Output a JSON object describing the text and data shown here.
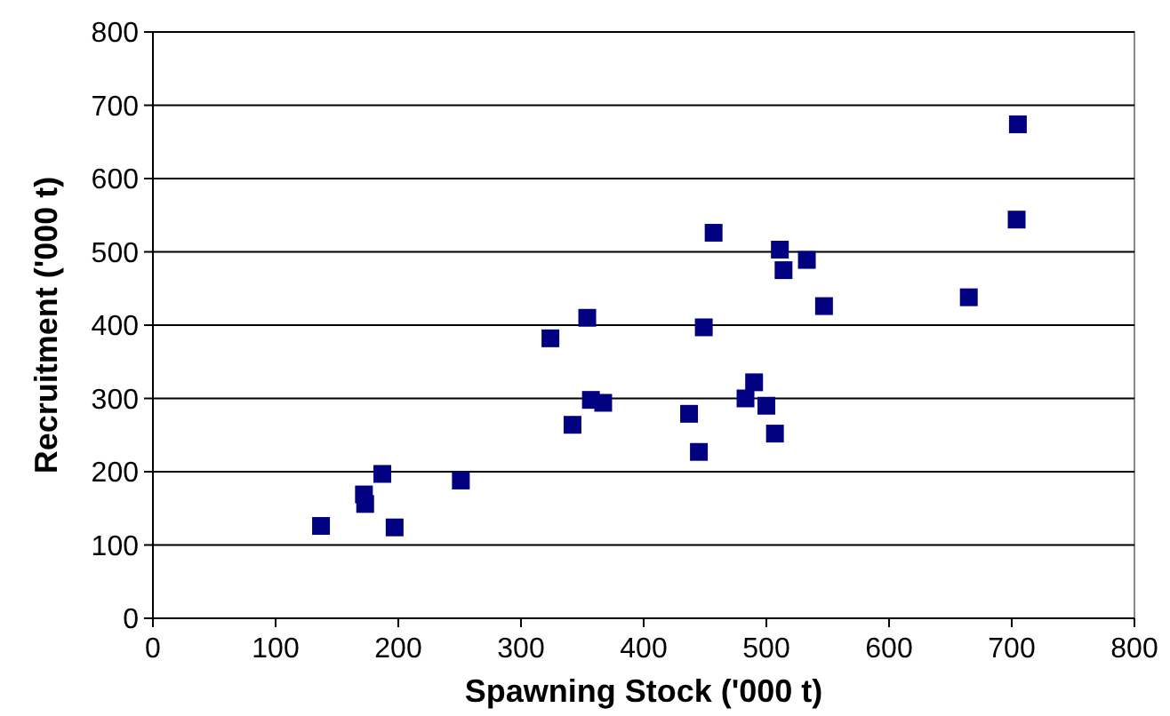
{
  "chart_data": {
    "type": "scatter",
    "xlabel": "Spawning Stock ('000 t)",
    "ylabel": "Recruitment ('000 t)",
    "xlim": [
      0,
      800
    ],
    "ylim": [
      0,
      800
    ],
    "xticks": [
      0,
      100,
      200,
      300,
      400,
      500,
      600,
      700,
      800
    ],
    "yticks": [
      0,
      100,
      200,
      300,
      400,
      500,
      600,
      700,
      800
    ],
    "grid": "y",
    "marker": "square",
    "series": [
      {
        "color": "#000080",
        "x": [
          137,
          172,
          173,
          187,
          197,
          251,
          324,
          342,
          354,
          357,
          367,
          437,
          445,
          449,
          457,
          483,
          490,
          500,
          507,
          511,
          514,
          533,
          547,
          665,
          704,
          705
        ],
        "values": [
          126,
          169,
          156,
          197,
          124,
          188,
          382,
          264,
          410,
          298,
          294,
          279,
          227,
          397,
          526,
          300,
          322,
          290,
          252,
          503,
          475,
          489,
          426,
          438,
          544,
          674
        ]
      }
    ]
  }
}
